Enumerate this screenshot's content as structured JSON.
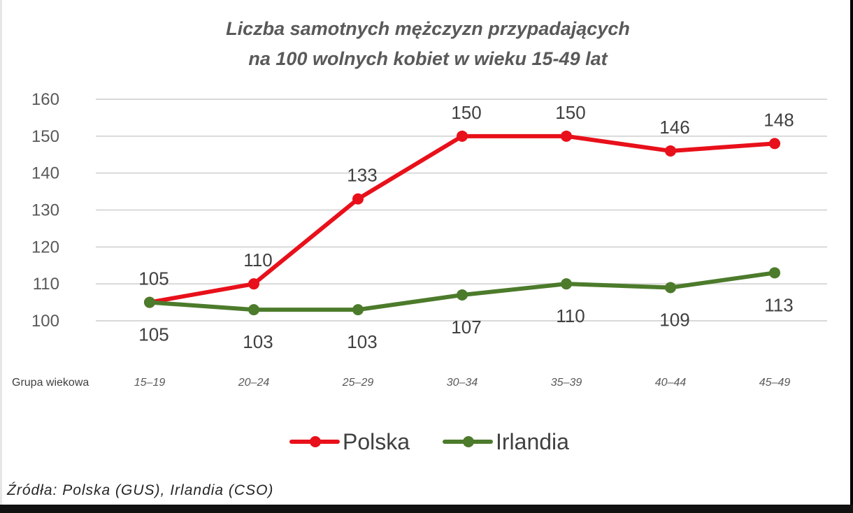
{
  "chart_data": {
    "type": "line",
    "title_lines": [
      "Liczba samotnych mężczyzn przypadających",
      "na 100 wolnych kobiet w wieku 15-49 lat"
    ],
    "xlabel": "Grupa wiekowa",
    "ylabel": "",
    "categories": [
      "15–19",
      "20–24",
      "25–29",
      "30–34",
      "35–39",
      "40–44",
      "45–49"
    ],
    "ylim": [
      100,
      160
    ],
    "yticks": [
      100,
      110,
      120,
      130,
      140,
      150,
      160
    ],
    "grid": true,
    "legend_position": "bottom",
    "series": [
      {
        "name": "Polska",
        "color": "#e8101a",
        "values": [
          105,
          110,
          133,
          150,
          150,
          146,
          148
        ],
        "labels": [
          "105",
          "110",
          "133",
          "150",
          "150",
          "146",
          "148"
        ],
        "label_position": "above"
      },
      {
        "name": "Irlandia",
        "color": "#4c7b2b",
        "values": [
          105,
          103,
          103,
          107,
          110,
          109,
          113
        ],
        "labels": [
          "105",
          "103",
          "103",
          "107",
          "110",
          "109",
          "113"
        ],
        "label_position": "below"
      }
    ]
  },
  "source_text": "Źródła: Polska (GUS), Irlandia (CSO)"
}
